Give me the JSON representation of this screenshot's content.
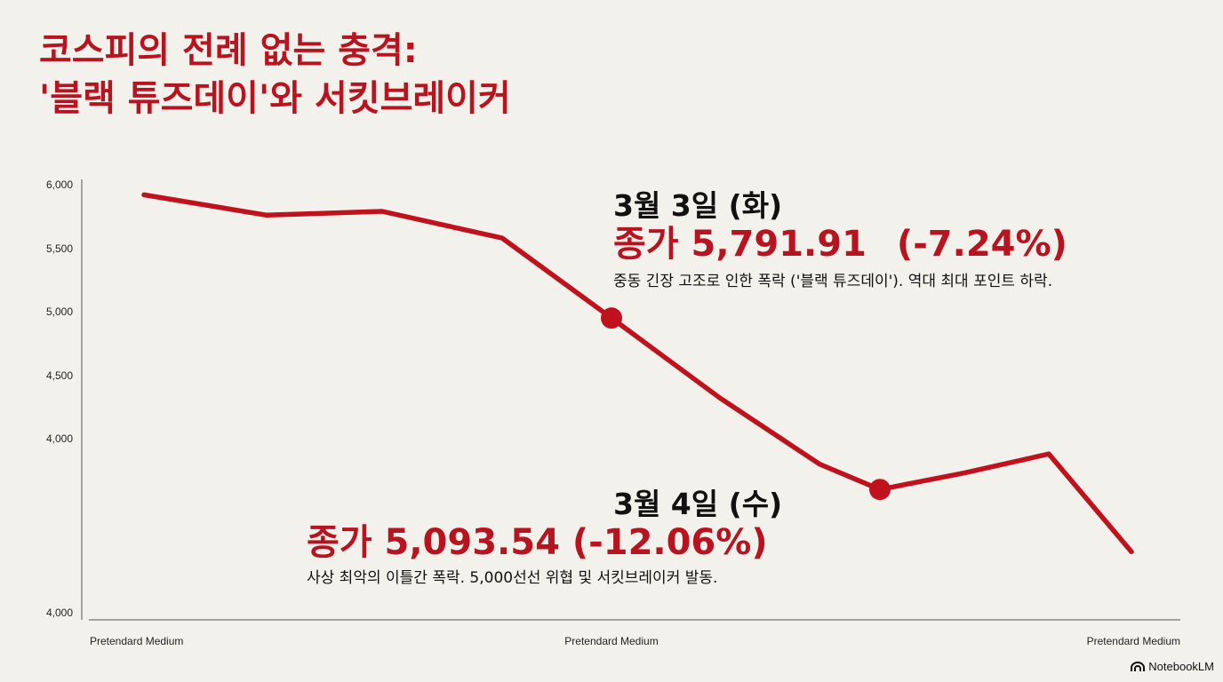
{
  "title": {
    "line1": "코스피의 전례 없는 충격:",
    "line2": "'블랙 튜즈데이'와 서킷브레이커"
  },
  "chart_data": {
    "type": "line",
    "y_ticks": [
      "6,000",
      "5,500",
      "5,000",
      "4,500",
      "4,000",
      "4,000"
    ],
    "x_ticks": [
      "Pretendard Medium",
      "Pretendard Medium",
      "Pretendard Medium"
    ],
    "series": [
      {
        "values": [
          5920,
          5760,
          5790,
          5580,
          4950,
          4320,
          3800,
          3600,
          3730,
          3880,
          3110
        ]
      }
    ],
    "highlighted_points": [
      4,
      7
    ],
    "line_color": "#c0121c",
    "grid": false
  },
  "annotations": [
    {
      "date": "3월 3일 (화)",
      "close": "종가 5,791.91",
      "change": "(-7.24%)",
      "desc": "중동 긴장 고조로 인한 폭락 ('블랙 튜즈데이'). 역대 최대 포인트 하락."
    },
    {
      "date": "3월 4일 (수)",
      "close": "종가 5,093.54",
      "change": "(-12.06%)",
      "desc": "사상 최악의 이틀간 폭락. 5,000선선 위협 및 서킷브레이커 발동."
    }
  ],
  "brand": {
    "label": "NotebookLM",
    "icon": "notebooklm-logo-icon"
  }
}
